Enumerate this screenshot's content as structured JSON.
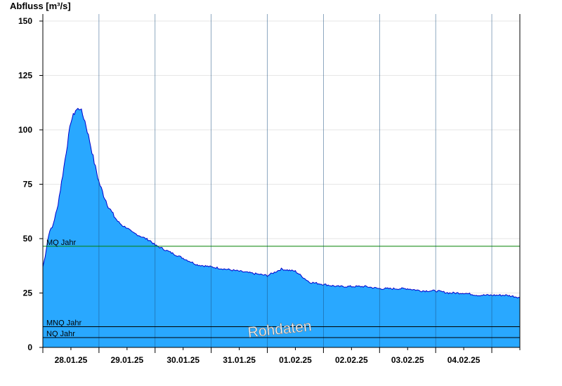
{
  "chart_data": {
    "type": "area",
    "ylabel": "Abfluss [m³/s]",
    "ylim": [
      0,
      150
    ],
    "yticks": [
      0,
      25,
      50,
      75,
      100,
      125,
      150
    ],
    "xlim_days": [
      "27.01.25 12:00",
      "04.02.25 12:00"
    ],
    "date_labels": [
      "28.01.25",
      "29.01.25",
      "30.01.25",
      "31.01.25",
      "01.02.25",
      "02.02.25",
      "03.02.25",
      "04.02.25"
    ],
    "grid": true,
    "fill_color": "#29a8ff",
    "line_color": "#0000cc",
    "series": [
      {
        "x_hours": [
          0,
          1,
          2,
          3,
          4,
          6,
          8,
          10,
          12,
          14,
          16,
          18,
          20,
          22,
          24,
          26,
          28,
          30,
          32,
          34,
          36,
          38,
          40,
          42,
          44,
          46,
          48,
          54,
          60,
          66,
          72,
          78,
          84,
          90,
          96,
          102,
          108,
          114,
          120,
          126,
          132,
          138,
          144,
          150,
          156,
          162,
          168,
          174,
          180,
          186,
          192,
          198,
          204
        ],
        "values": [
          37,
          42,
          49,
          54,
          55,
          63,
          76,
          90,
          104,
          109,
          110,
          104,
          95,
          85,
          76,
          70,
          65,
          61,
          58,
          56,
          55,
          53,
          52,
          51,
          50,
          49,
          47,
          44,
          41,
          38,
          37,
          36,
          35,
          34,
          33,
          36,
          35,
          30,
          29,
          28,
          28,
          28,
          27,
          27,
          27,
          26,
          26,
          25,
          25,
          24,
          24,
          24,
          23
        ]
      }
    ],
    "reference_lines": [
      {
        "name": "MQ Jahr",
        "value": 46.5,
        "color": "#008000"
      },
      {
        "name": "MNQ Jahr",
        "value": 9.5,
        "color": "#000000"
      },
      {
        "name": "NQ Jahr",
        "value": 4.5,
        "color": "#000000"
      }
    ],
    "watermark": "Rohdaten"
  }
}
